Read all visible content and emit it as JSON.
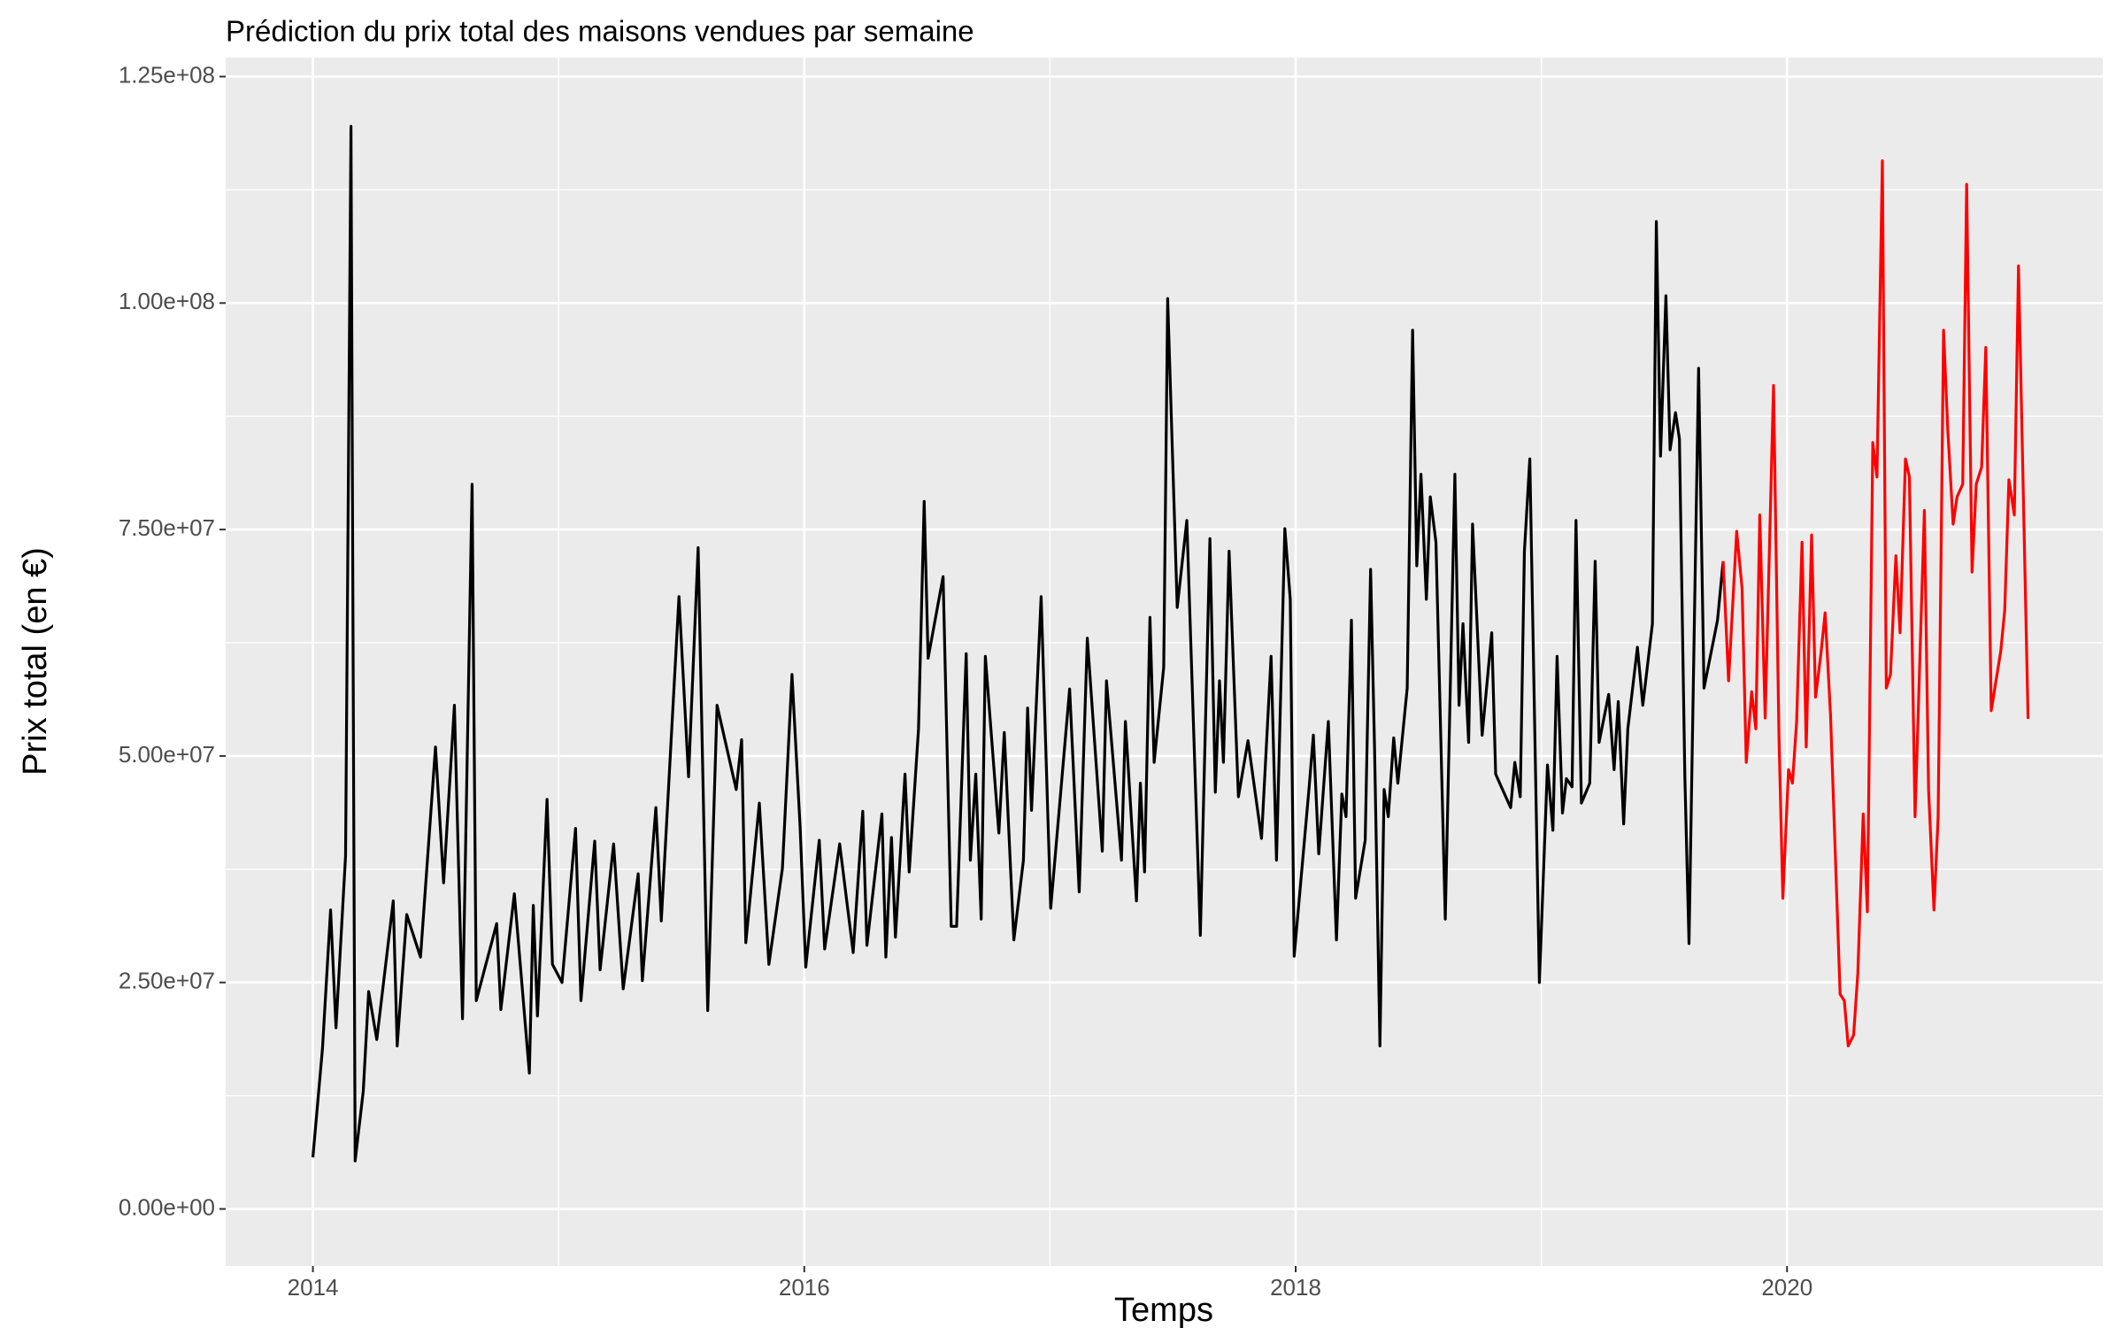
{
  "chart_data": {
    "type": "line",
    "title": "Prédiction du prix total des maisons vendues par semaine",
    "x_label": "Temps",
    "y_label": "Prix total (en €)",
    "xlim": [
      2013.645,
      2021.285
    ],
    "ylim": [
      -6300000,
      127100000
    ],
    "xticks": [
      2014,
      2016,
      2018,
      2020
    ],
    "yticks": [
      {
        "value": 0,
        "label": "0.00e+00"
      },
      {
        "value": 25000000,
        "label": "2.50e+07"
      },
      {
        "value": 50000000,
        "label": "5.00e+07"
      },
      {
        "value": 75000000,
        "label": "7.50e+07"
      },
      {
        "value": 100000000,
        "label": "1.00e+08"
      },
      {
        "value": 125000000,
        "label": "1.25e+08"
      }
    ],
    "grid": true,
    "series": [
      {
        "color": "#000000",
        "x": [
          2014.0,
          2014.039,
          2014.072,
          2014.094,
          2014.133,
          2014.155,
          2014.172,
          2014.205,
          2014.227,
          2014.26,
          2014.327,
          2014.343,
          2014.382,
          2014.438,
          2014.499,
          2014.532,
          2014.576,
          2014.609,
          2014.648,
          2014.665,
          2014.748,
          2014.765,
          2014.82,
          2014.881,
          2014.897,
          2014.914,
          2014.953,
          2014.975,
          2015.014,
          2015.069,
          2015.091,
          2015.147,
          2015.169,
          2015.224,
          2015.263,
          2015.324,
          2015.341,
          2015.396,
          2015.418,
          2015.49,
          2015.529,
          2015.568,
          2015.607,
          2015.645,
          2015.723,
          2015.745,
          2015.762,
          2015.817,
          2015.856,
          2015.911,
          2015.95,
          2015.983,
          2016.006,
          2016.061,
          2016.083,
          2016.144,
          2016.199,
          2016.238,
          2016.255,
          2016.316,
          2016.332,
          2016.355,
          2016.371,
          2016.41,
          2016.427,
          2016.465,
          2016.488,
          2016.504,
          2016.565,
          2016.598,
          2016.62,
          2016.659,
          2016.676,
          2016.698,
          2016.72,
          2016.737,
          2016.792,
          2016.814,
          2016.853,
          2016.892,
          2016.909,
          2016.925,
          2016.964,
          2017.003,
          2017.08,
          2017.119,
          2017.152,
          2017.213,
          2017.23,
          2017.291,
          2017.307,
          2017.352,
          2017.368,
          2017.385,
          2017.407,
          2017.424,
          2017.463,
          2017.479,
          2017.518,
          2017.557,
          2017.612,
          2017.651,
          2017.673,
          2017.69,
          2017.706,
          2017.729,
          2017.767,
          2017.806,
          2017.861,
          2017.9,
          2017.922,
          2017.956,
          2017.978,
          2017.994,
          2018.055,
          2018.072,
          2018.094,
          2018.133,
          2018.166,
          2018.188,
          2018.205,
          2018.227,
          2018.244,
          2018.283,
          2018.305,
          2018.321,
          2018.343,
          2018.36,
          2018.377,
          2018.399,
          2018.416,
          2018.454,
          2018.476,
          2018.493,
          2018.51,
          2018.532,
          2018.548,
          2018.571,
          2018.609,
          2018.648,
          2018.665,
          2018.681,
          2018.704,
          2018.72,
          2018.759,
          2018.798,
          2018.814,
          2018.875,
          2018.892,
          2018.914,
          2018.931,
          2018.953,
          2018.992,
          2019.025,
          2019.047,
          2019.064,
          2019.086,
          2019.102,
          2019.125,
          2019.141,
          2019.163,
          2019.197,
          2019.219,
          2019.235,
          2019.274,
          2019.296,
          2019.313,
          2019.335,
          2019.352,
          2019.391,
          2019.413,
          2019.452,
          2019.468,
          2019.485,
          2019.507,
          2019.524,
          2019.546,
          2019.562,
          2019.584,
          2019.601,
          2019.64,
          2019.662,
          2019.701,
          2019.717,
          2019.74
        ],
        "values": [
          5700000,
          17700000,
          33000000,
          20000000,
          39000000,
          119500000,
          5300000,
          13000000,
          24000000,
          18700000,
          34000000,
          18000000,
          32500000,
          27800000,
          51000000,
          36000000,
          55600000,
          21000000,
          80000000,
          23000000,
          31500000,
          22000000,
          34800000,
          15000000,
          33500000,
          21300000,
          45200000,
          27000000,
          25000000,
          42000000,
          23000000,
          40600000,
          26400000,
          40300000,
          24300000,
          37000000,
          25200000,
          44300000,
          31800000,
          67600000,
          47700000,
          73000000,
          21900000,
          55600000,
          46300000,
          51800000,
          29400000,
          44800000,
          27000000,
          37600000,
          59000000,
          42200000,
          26700000,
          40700000,
          28700000,
          40300000,
          28300000,
          43900000,
          29100000,
          43600000,
          27800000,
          41000000,
          30000000,
          48000000,
          37200000,
          53000000,
          78100000,
          60800000,
          69800000,
          31200000,
          31200000,
          61300000,
          38500000,
          48000000,
          32000000,
          61000000,
          41500000,
          52600000,
          29700000,
          38500000,
          55300000,
          44000000,
          67600000,
          33200000,
          57400000,
          35000000,
          63000000,
          39500000,
          58300000,
          38500000,
          53800000,
          34000000,
          47000000,
          37200000,
          65300000,
          49300000,
          59800000,
          100500000,
          66400000,
          76000000,
          30200000,
          74000000,
          46000000,
          58300000,
          49300000,
          72600000,
          45500000,
          51700000,
          40900000,
          61000000,
          38500000,
          75100000,
          67300000,
          27900000,
          46600000,
          52300000,
          39200000,
          53800000,
          29700000,
          45800000,
          43300000,
          65000000,
          34300000,
          40700000,
          70600000,
          51000000,
          18000000,
          46300000,
          43300000,
          52000000,
          47000000,
          57500000,
          97000000,
          71000000,
          81100000,
          67300000,
          78600000,
          73600000,
          32000000,
          81100000,
          55600000,
          64600000,
          51500000,
          75600000,
          52300000,
          63600000,
          48000000,
          44300000,
          49300000,
          45500000,
          72600000,
          82800000,
          25000000,
          49000000,
          41800000,
          61000000,
          43700000,
          47500000,
          46600000,
          76000000,
          44800000,
          47000000,
          71500000,
          51500000,
          56800000,
          48500000,
          56000000,
          42500000,
          53000000,
          62000000,
          55600000,
          64600000,
          109000000,
          83100000,
          100800000,
          83800000,
          87900000,
          85000000,
          47800000,
          29300000,
          92800000,
          57500000,
          62800000,
          65000000,
          71500000
        ]
      },
      {
        "color": "#ff0000",
        "x": [
          2019.74,
          2019.762,
          2019.795,
          2019.817,
          2019.834,
          2019.856,
          2019.873,
          2019.889,
          2019.911,
          2019.945,
          2019.967,
          2019.983,
          2020.006,
          2020.022,
          2020.039,
          2020.061,
          2020.078,
          2020.1,
          2020.116,
          2020.138,
          2020.155,
          2020.177,
          2020.216,
          2020.233,
          2020.249,
          2020.271,
          2020.288,
          2020.31,
          2020.327,
          2020.349,
          2020.366,
          2020.388,
          2020.404,
          2020.421,
          2020.443,
          2020.46,
          2020.482,
          2020.498,
          2020.521,
          2020.559,
          2020.576,
          2020.598,
          2020.615,
          2020.637,
          2020.654,
          2020.676,
          2020.692,
          2020.715,
          2020.731,
          2020.753,
          2020.77,
          2020.792,
          2020.809,
          2020.831,
          2020.87,
          2020.886,
          2020.903,
          2020.925,
          2020.942,
          2020.981
        ],
        "values": [
          71500000,
          58300000,
          74800000,
          68500000,
          49300000,
          57100000,
          53000000,
          76600000,
          54200000,
          90900000,
          52300000,
          34300000,
          48500000,
          47000000,
          53800000,
          73600000,
          51000000,
          74400000,
          56500000,
          61300000,
          65800000,
          54500000,
          23700000,
          23000000,
          18000000,
          19200000,
          26000000,
          43600000,
          32800000,
          84600000,
          80800000,
          115700000,
          57500000,
          59000000,
          72100000,
          63600000,
          82800000,
          80800000,
          43300000,
          77100000,
          46300000,
          33000000,
          43300000,
          97000000,
          86100000,
          75600000,
          78600000,
          80000000,
          113100000,
          70300000,
          80000000,
          81900000,
          95100000,
          55000000,
          61600000,
          66100000,
          80500000,
          76600000,
          104100000,
          54100000
        ]
      }
    ]
  }
}
